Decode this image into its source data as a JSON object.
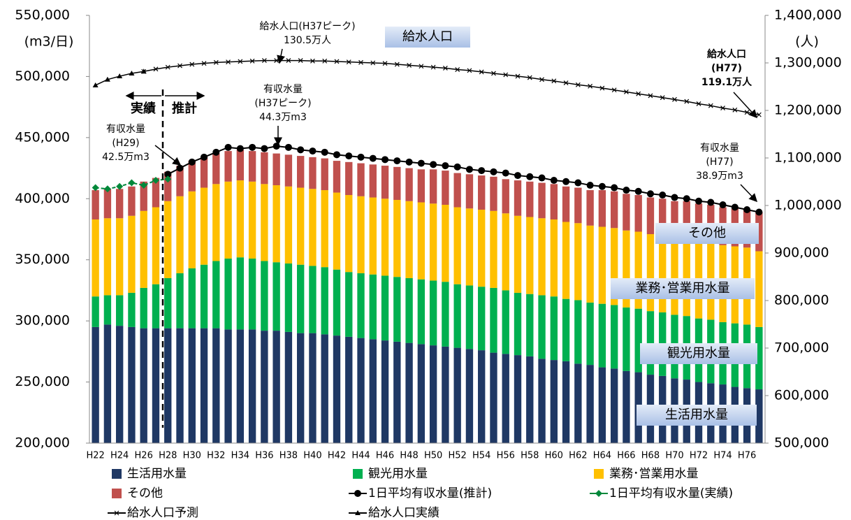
{
  "chart_data": {
    "type": "bar",
    "stacked": true,
    "y_label": "(m3/日)",
    "y2_label": "(人)",
    "categories": [
      "H22",
      null,
      "H24",
      null,
      "H26",
      null,
      "H28",
      null,
      "H30",
      null,
      "H32",
      null,
      "H34",
      null,
      "H36",
      null,
      "H38",
      null,
      "H40",
      null,
      "H42",
      null,
      "H44",
      null,
      "H46",
      null,
      "H48",
      null,
      "H50",
      null,
      "H52",
      null,
      "H54",
      null,
      "H56",
      null,
      "H58",
      null,
      "H60",
      null,
      "H62",
      null,
      "H64",
      null,
      "H66",
      null,
      "H68",
      null,
      "H70",
      null,
      "H72",
      null,
      "H74",
      null,
      "H76",
      null
    ],
    "ylim": [
      200000,
      550000
    ],
    "yticks": [
      {
        "value": 200000,
        "label": "200,000"
      },
      {
        "value": 250000,
        "label": "250,000"
      },
      {
        "value": 300000,
        "label": "300,000"
      },
      {
        "value": 350000,
        "label": "350,000"
      },
      {
        "value": 400000,
        "label": "400,000"
      },
      {
        "value": 450000,
        "label": "450,000"
      },
      {
        "value": 500000,
        "label": "500,000"
      },
      {
        "value": 550000,
        "label": "550,000"
      }
    ],
    "y2lim": [
      500000,
      1400000
    ],
    "y2ticks": [
      {
        "value": 500000,
        "label": "500,000"
      },
      {
        "value": 600000,
        "label": "600,000"
      },
      {
        "value": 700000,
        "label": "700,000"
      },
      {
        "value": 800000,
        "label": "800,000"
      },
      {
        "value": 900000,
        "label": "900,000"
      },
      {
        "value": 1000000,
        "label": "1,000,000"
      },
      {
        "value": 1100000,
        "label": "1,100,000"
      },
      {
        "value": 1200000,
        "label": "1,200,000"
      },
      {
        "value": 1300000,
        "label": "1,300,000"
      },
      {
        "value": 1400000,
        "label": "1,400,000"
      }
    ],
    "series": [
      {
        "name": "生活用水量",
        "color": "#1f3864",
        "values": [
          295000,
          297000,
          296000,
          295000,
          294000,
          294000,
          294000,
          294000,
          294000,
          294000,
          294000,
          293000,
          293000,
          293000,
          292000,
          292000,
          291000,
          290000,
          290000,
          289000,
          288000,
          287000,
          286000,
          285000,
          284000,
          283000,
          282000,
          281000,
          280000,
          279000,
          278000,
          277000,
          276000,
          274000,
          273000,
          272000,
          271000,
          269000,
          268000,
          267000,
          265000,
          264000,
          262000,
          261000,
          259000,
          258000,
          256000,
          255000,
          253000,
          252000,
          250000,
          249000,
          248000,
          246000,
          245000,
          244000
        ]
      },
      {
        "name": "観光用水量",
        "color": "#00b050",
        "values": [
          25000,
          24000,
          25000,
          28000,
          33000,
          36000,
          41000,
          45000,
          49000,
          52000,
          55000,
          58000,
          59000,
          58000,
          57000,
          56000,
          56000,
          56000,
          55000,
          55000,
          54000,
          53000,
          53000,
          53000,
          53000,
          53000,
          53000,
          53000,
          53000,
          53000,
          52000,
          52000,
          52000,
          53000,
          52000,
          51000,
          51000,
          52000,
          52000,
          51000,
          52000,
          51000,
          52000,
          52000,
          52000,
          52000,
          52000,
          52000,
          52000,
          52000,
          52000,
          52000,
          51000,
          52000,
          52000,
          51000
        ]
      },
      {
        "name": "業務･営業用水量",
        "color": "#ffc000",
        "values": [
          63000,
          63000,
          63000,
          63000,
          63000,
          63000,
          63000,
          63000,
          63000,
          63000,
          63000,
          63000,
          63000,
          63000,
          63000,
          63000,
          63000,
          63000,
          63000,
          63000,
          63000,
          63000,
          63000,
          63000,
          63000,
          63000,
          63000,
          63000,
          63000,
          63000,
          63000,
          63000,
          63000,
          63000,
          63000,
          63000,
          63000,
          63000,
          63000,
          63000,
          63000,
          63000,
          63000,
          63000,
          63000,
          63000,
          63000,
          63000,
          63000,
          63000,
          63000,
          63000,
          63000,
          63000,
          63000,
          62000
        ]
      },
      {
        "name": "その他",
        "color": "#c0504d",
        "values": [
          24000,
          24000,
          24000,
          24000,
          24000,
          24000,
          24000,
          25000,
          25000,
          25000,
          25000,
          25000,
          25000,
          25000,
          26000,
          26000,
          26000,
          26000,
          26000,
          26000,
          26000,
          27000,
          27000,
          27000,
          27000,
          27000,
          27000,
          27000,
          28000,
          28000,
          28000,
          28000,
          28000,
          28000,
          28000,
          29000,
          29000,
          29000,
          29000,
          29000,
          29000,
          29000,
          30000,
          30000,
          30000,
          30000,
          30000,
          30000,
          30000,
          31000,
          31000,
          31000,
          31000,
          31000,
          31000,
          32000
        ]
      },
      {
        "name": "1日平均有収水量(推計)",
        "type": "line",
        "marker": "circle",
        "color": "#000000",
        "values": [
          null,
          null,
          null,
          null,
          null,
          null,
          420000,
          425000,
          430000,
          434000,
          438000,
          442000,
          441000,
          442000,
          441000,
          443000,
          442000,
          440000,
          439000,
          438000,
          436000,
          435000,
          434000,
          433000,
          432000,
          431000,
          430000,
          429000,
          428000,
          427000,
          426000,
          424000,
          423000,
          422000,
          421000,
          419000,
          418000,
          417000,
          415000,
          414000,
          413000,
          411000,
          410000,
          409000,
          407000,
          406000,
          404000,
          403000,
          401000,
          400000,
          398000,
          397000,
          395000,
          393000,
          391000,
          389000
        ]
      },
      {
        "name": "1日平均有収水量(実績)",
        "type": "line",
        "marker": "diamond",
        "color": "#00883a",
        "values": [
          409000,
          408000,
          410000,
          413000,
          411000,
          415000,
          416000,
          null,
          null,
          null,
          null,
          null,
          null,
          null,
          null,
          null,
          null,
          null,
          null,
          null,
          null,
          null,
          null,
          null,
          null,
          null,
          null,
          null,
          null,
          null,
          null,
          null,
          null,
          null,
          null,
          null,
          null,
          null,
          null,
          null,
          null,
          null,
          null,
          null,
          null,
          null,
          null,
          null,
          null,
          null,
          null,
          null,
          null,
          null,
          null,
          null
        ]
      },
      {
        "name": "給水人口予測",
        "type": "line",
        "marker": "x",
        "axis": "y2",
        "color": "#000000",
        "values": [
          null,
          null,
          null,
          null,
          1282000,
          1287000,
          1291000,
          1294000,
          1297000,
          1299000,
          1301000,
          1302000,
          1303000,
          1304000,
          1305000,
          1305000,
          1305000,
          1305000,
          1304000,
          1304000,
          1303000,
          1302000,
          1301000,
          1300000,
          1299000,
          1297000,
          1295000,
          1293000,
          1291000,
          1289000,
          1286000,
          1284000,
          1281000,
          1278000,
          1275000,
          1272000,
          1269000,
          1265000,
          1262000,
          1258000,
          1254000,
          1251000,
          1247000,
          1243000,
          1239000,
          1235000,
          1231000,
          1227000,
          1223000,
          1219000,
          1214000,
          1210000,
          1205000,
          1201000,
          1196000,
          1191000
        ]
      },
      {
        "name": "給水人口実績",
        "type": "line",
        "marker": "triangle",
        "axis": "y2",
        "color": "#000000",
        "values": [
          1253000,
          1265000,
          1272000,
          1278000,
          1282000,
          null,
          null,
          null,
          null,
          null,
          null,
          null,
          null,
          null,
          null,
          null,
          null,
          null,
          null,
          null,
          null,
          null,
          null,
          null,
          null,
          null,
          null,
          null,
          null,
          null,
          null,
          null,
          null,
          null,
          null,
          null,
          null,
          null,
          null,
          null,
          null,
          null,
          null,
          null,
          null,
          null,
          null,
          null,
          null,
          null,
          null,
          null,
          null,
          null,
          null,
          null
        ]
      }
    ],
    "segment_labels": [
      "給水人口",
      "その他",
      "業務･営業用水量",
      "観光用水量",
      "生活用水量"
    ],
    "period_labels": [
      "実績",
      "推計"
    ],
    "annotations": [
      {
        "lines": [
          "給水人口(H37ピーク)",
          "130.5万人"
        ]
      },
      {
        "lines": [
          "給水人口",
          "(H77)",
          "119.1万人"
        ]
      },
      {
        "lines": [
          "有収水量",
          "(H37ピーク)",
          "44.3万m3"
        ]
      },
      {
        "lines": [
          "有収水量",
          "(H29)",
          "42.5万m3"
        ]
      },
      {
        "lines": [
          "有収水量",
          "(H77)",
          "38.9万m3"
        ]
      }
    ]
  }
}
